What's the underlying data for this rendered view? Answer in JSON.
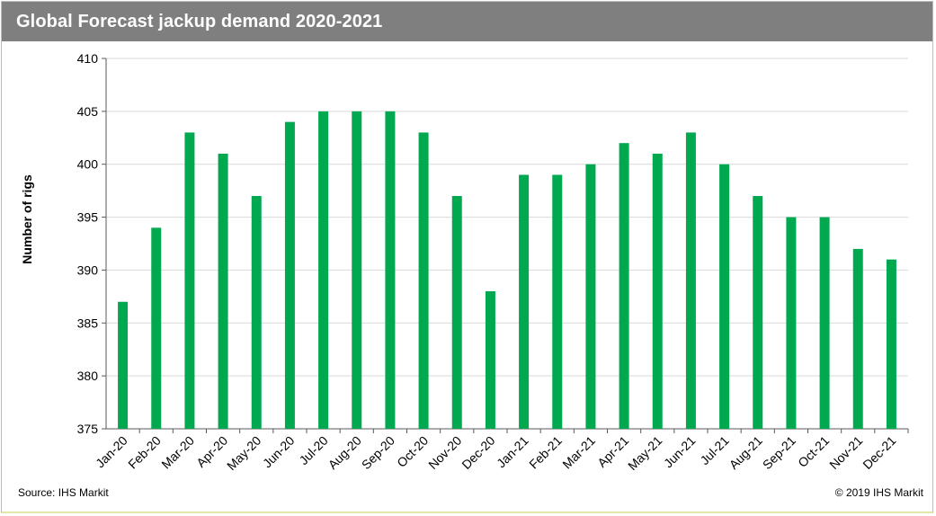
{
  "title": "Global Forecast jackup demand 2020-2021",
  "source": "Source: IHS Markit",
  "copyright": "© 2019 IHS Markit",
  "colors": {
    "bar": "#00a84f",
    "header": "#7f7f7f",
    "grid": "#d9d9d9"
  },
  "chart_data": {
    "type": "bar",
    "ylabel": "Number of rigs",
    "xlabel": "",
    "ylim": [
      375,
      410
    ],
    "yticks": [
      375,
      380,
      385,
      390,
      395,
      400,
      405,
      410
    ],
    "grid": true,
    "legend": "none",
    "categories": [
      "Jan-20",
      "Feb-20",
      "Mar-20",
      "Apr-20",
      "May-20",
      "Jun-20",
      "Jul-20",
      "Aug-20",
      "Sep-20",
      "Oct-20",
      "Nov-20",
      "Dec-20",
      "Jan-21",
      "Feb-21",
      "Mar-21",
      "Apr-21",
      "May-21",
      "Jun-21",
      "Jul-21",
      "Aug-21",
      "Sep-21",
      "Oct-21",
      "Nov-21",
      "Dec-21"
    ],
    "values": [
      387,
      394,
      403,
      401,
      397,
      404,
      405,
      405,
      405,
      403,
      397,
      388,
      399,
      399,
      400,
      402,
      401,
      403,
      400,
      397,
      395,
      395,
      392,
      391
    ]
  }
}
